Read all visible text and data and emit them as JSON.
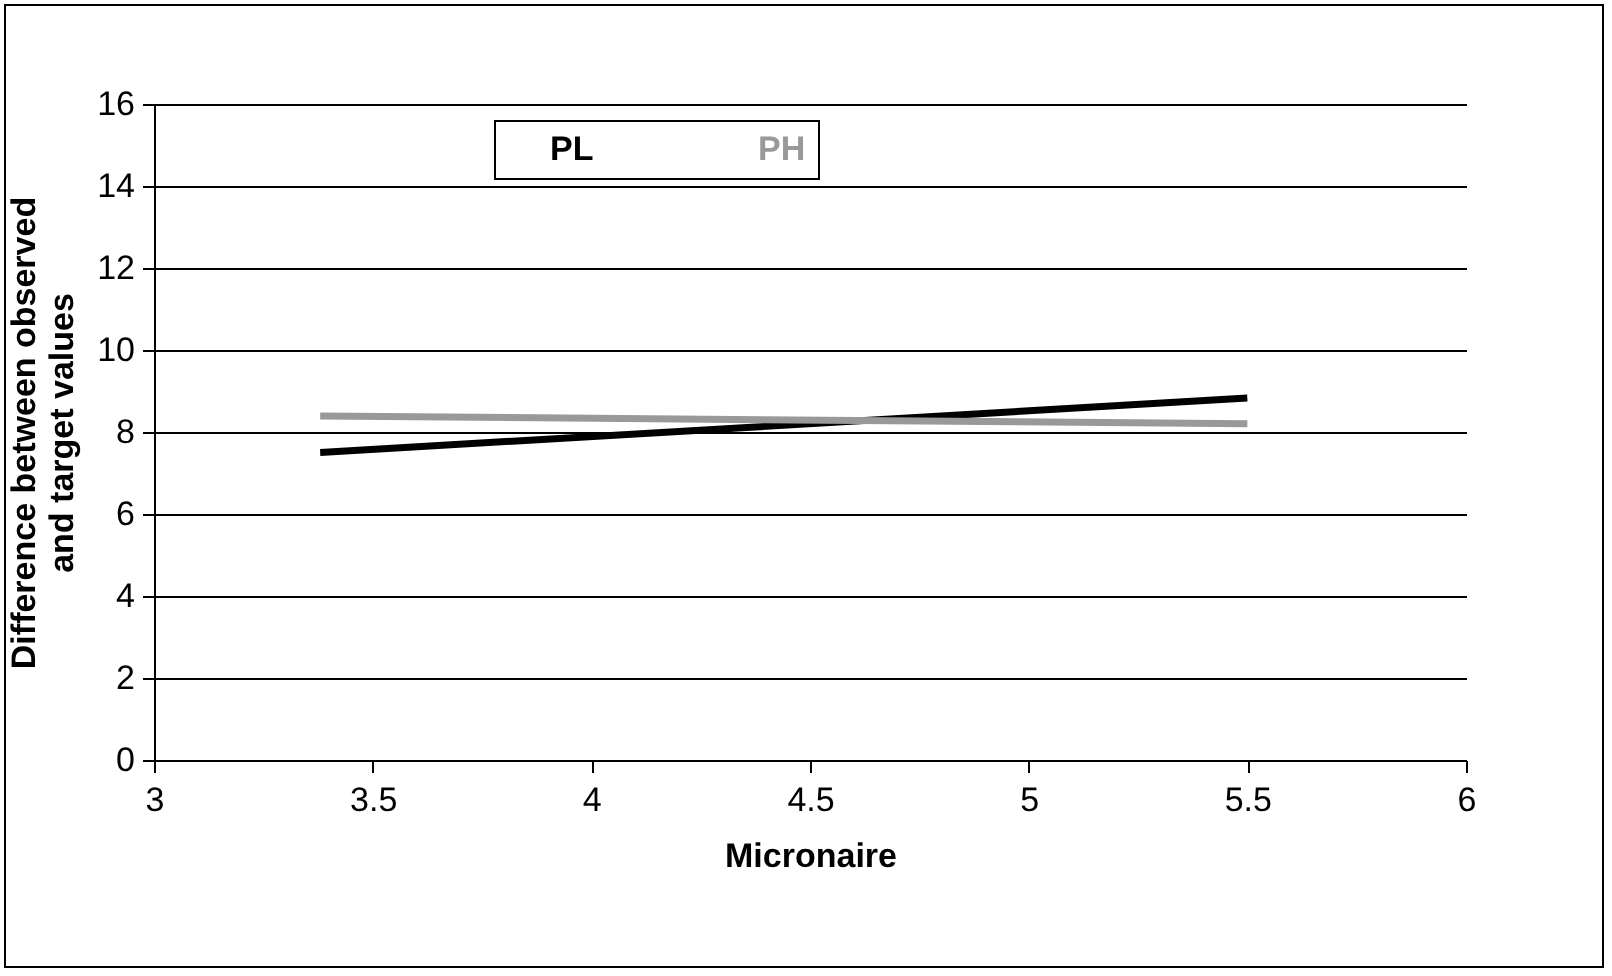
{
  "chart_data": {
    "type": "line",
    "xlabel": "Micronaire",
    "ylabel": "Difference between observed and target values",
    "x": [
      3.38,
      5.5
    ],
    "xlim": [
      3,
      6
    ],
    "xticks": [
      3,
      3.5,
      4,
      4.5,
      5,
      5.5,
      6
    ],
    "ylim": [
      0,
      16
    ],
    "yticks": [
      0,
      2,
      4,
      6,
      8,
      10,
      12,
      14,
      16
    ],
    "grid": "y",
    "legend": "top",
    "line_style": "solid",
    "series": [
      {
        "name": "PL",
        "color": "#000000",
        "values": [
          7.5,
          8.83
        ]
      },
      {
        "name": "PH",
        "color": "#999999",
        "values": [
          8.39,
          8.2
        ]
      }
    ]
  }
}
